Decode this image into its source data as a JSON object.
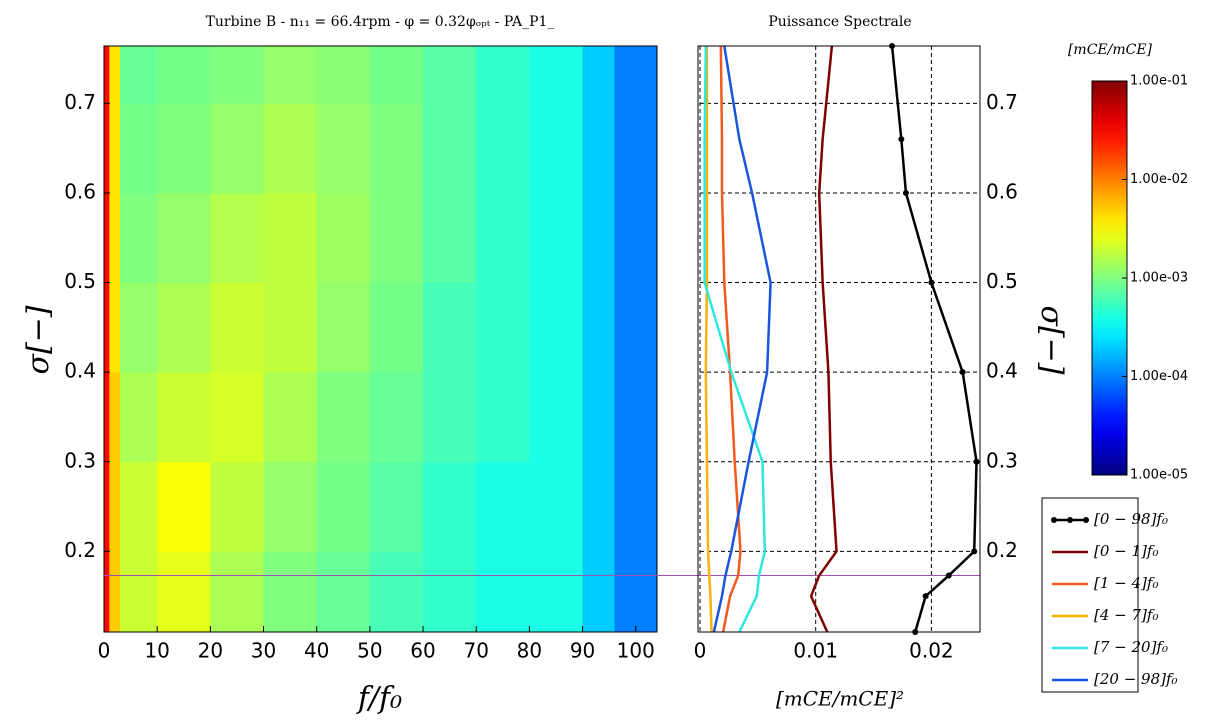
{
  "chart_data": [
    {
      "type": "heatmap",
      "title": "Turbine B - n₁₁ = 66.4rpm - φ = 0.32φₒₚₜ - PA_P1_",
      "xlabel": "f/f₀",
      "ylabel": "σ[−]",
      "xlim": [
        0,
        104
      ],
      "xticks": [
        0,
        10,
        20,
        30,
        40,
        50,
        60,
        70,
        80,
        90,
        100
      ],
      "ylim": [
        0.11,
        0.764
      ],
      "yticks": [
        0.2,
        0.3,
        0.4,
        0.5,
        0.6,
        0.7
      ],
      "x_edges": [
        0,
        1,
        3,
        10,
        20,
        30,
        40,
        50,
        60,
        70,
        80,
        90,
        96,
        104
      ],
      "y_edges": [
        0.11,
        0.2,
        0.3,
        0.4,
        0.5,
        0.6,
        0.7,
        0.764
      ],
      "z": [
        [
          0.03,
          0.005,
          0.002,
          0.0025,
          0.0015,
          0.001,
          0.0008,
          0.0006,
          0.0005,
          0.0004,
          0.0004,
          0.0002,
          0.0001
        ],
        [
          0.03,
          0.005,
          0.002,
          0.003,
          0.0018,
          0.0012,
          0.0009,
          0.0007,
          0.0005,
          0.0004,
          0.0004,
          0.0002,
          0.0001
        ],
        [
          0.03,
          0.005,
          0.0015,
          0.002,
          0.0022,
          0.0015,
          0.001,
          0.0008,
          0.0006,
          0.0005,
          0.0004,
          0.0002,
          0.0001
        ],
        [
          0.03,
          0.004,
          0.0012,
          0.0015,
          0.002,
          0.0018,
          0.0012,
          0.0009,
          0.0006,
          0.0005,
          0.0004,
          0.0002,
          0.0001
        ],
        [
          0.03,
          0.004,
          0.001,
          0.0012,
          0.0016,
          0.0018,
          0.0013,
          0.001,
          0.0007,
          0.0005,
          0.0004,
          0.0002,
          0.0001
        ],
        [
          0.03,
          0.004,
          0.0009,
          0.001,
          0.0012,
          0.0015,
          0.0012,
          0.001,
          0.0007,
          0.0005,
          0.0004,
          0.0002,
          0.0001
        ],
        [
          0.03,
          0.004,
          0.0008,
          0.0009,
          0.001,
          0.0012,
          0.0011,
          0.0009,
          0.0007,
          0.0005,
          0.0004,
          0.0002,
          0.0001
        ]
      ],
      "colormap": "jet",
      "marker_line": 0.173,
      "marker_line_color": "#a050b0",
      "colorbar": {
        "label": "[mCE/mCE]",
        "scale": "log",
        "lim": [
          1e-05,
          0.1
        ],
        "ticks": [
          {
            "value": 0.1,
            "label": "1.00e-01"
          },
          {
            "value": 0.01,
            "label": "1.00e-02"
          },
          {
            "value": 0.001,
            "label": "1.00e-03"
          },
          {
            "value": 0.0001,
            "label": "1.00e-04"
          },
          {
            "value": 1e-05,
            "label": "1.00e-05"
          }
        ]
      }
    },
    {
      "type": "line",
      "title": "Puissance Spectrale",
      "xlabel": "[mCE/mCE]²",
      "ylabel": "σ[−]",
      "xlim": [
        0,
        0.0242
      ],
      "xticks": [
        0,
        0.01,
        0.02
      ],
      "ylim": [
        0.11,
        0.764
      ],
      "yticks": [
        0.2,
        0.3,
        0.4,
        0.5,
        0.6,
        0.7
      ],
      "grid": true,
      "legend": "lower right outside",
      "sigma": [
        0.11,
        0.15,
        0.173,
        0.2,
        0.3,
        0.4,
        0.5,
        0.6,
        0.66,
        0.764
      ],
      "series": [
        {
          "name": "[0 − 98]f₀",
          "color": "#000000",
          "markers": true,
          "values": [
            0.0186,
            0.0195,
            0.0215,
            0.0237,
            0.0239,
            0.0227,
            0.02,
            0.0178,
            0.0174,
            0.0166
          ]
        },
        {
          "name": "[0 − 1]f₀",
          "color": "#7f0000",
          "values": [
            0.011,
            0.0096,
            0.0103,
            0.0118,
            0.0113,
            0.0111,
            0.0106,
            0.0103,
            0.0106,
            0.0114
          ]
        },
        {
          "name": "[1 − 4]f₀",
          "color": "#f05a1e",
          "values": [
            0.002,
            0.0026,
            0.0033,
            0.0035,
            0.003,
            0.0026,
            0.0021,
            0.0019,
            0.0019,
            0.0018
          ]
        },
        {
          "name": "[4 − 7]f₀",
          "color": "#f8b20a",
          "values": [
            0.001,
            0.0009,
            0.0008,
            0.0007,
            0.0006,
            0.0005,
            0.0006,
            0.0006,
            0.0006,
            0.0006
          ]
        },
        {
          "name": "[7 − 20]f₀",
          "color": "#2ee8e0",
          "values": [
            0.0034,
            0.0049,
            0.0051,
            0.0056,
            0.0054,
            0.0027,
            0.0004,
            0.0004,
            0.0004,
            0.0005
          ]
        },
        {
          "name": "[20 − 98]f₀",
          "color": "#1a55e0",
          "values": [
            0.0012,
            0.0019,
            0.0022,
            0.0027,
            0.0042,
            0.0058,
            0.0061,
            0.0045,
            0.0034,
            0.0021
          ]
        }
      ]
    }
  ]
}
